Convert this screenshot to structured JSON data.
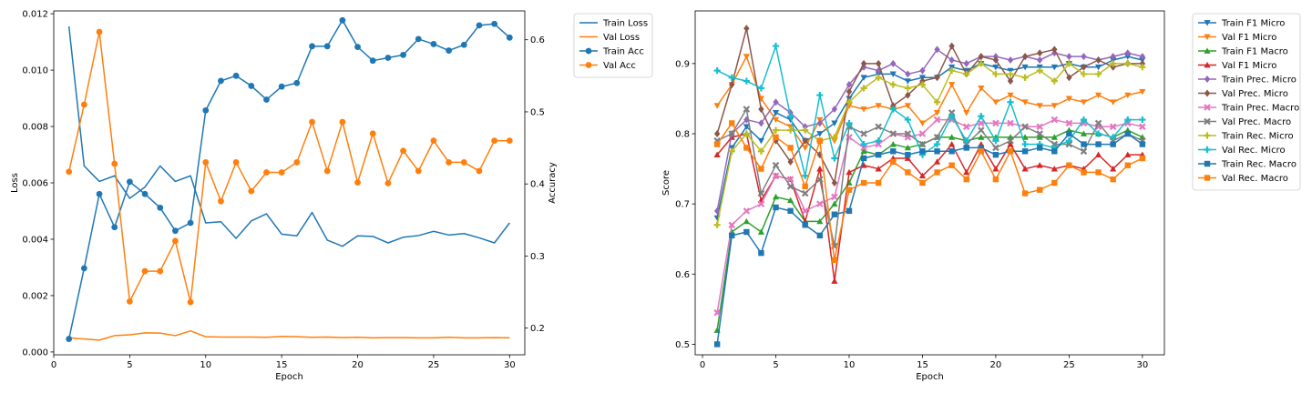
{
  "colors": {
    "c0": "#1f77b4",
    "c1": "#ff7f0e",
    "c2": "#2ca02c",
    "c3": "#d62728",
    "c4": "#9467bd",
    "c5": "#8c564b",
    "c6": "#e377c2",
    "c7": "#7f7f7f",
    "c8": "#bcbd22",
    "c9": "#17becf"
  },
  "chart_data": [
    {
      "type": "line",
      "xlabel": "Epoch",
      "ylabel": "Loss",
      "y2label": "Accuracy",
      "xlim": [
        0,
        31
      ],
      "ylim": [
        -0.0001,
        0.0121
      ],
      "y2lim": [
        0.163,
        0.64
      ],
      "xticks": [
        0,
        5,
        10,
        15,
        20,
        25,
        30
      ],
      "yticks": [
        0.0,
        0.002,
        0.004,
        0.006,
        0.008,
        0.01,
        0.012
      ],
      "ytick_labels": [
        "0.000",
        "0.002",
        "0.004",
        "0.006",
        "0.008",
        "0.010",
        "0.012"
      ],
      "y2ticks": [
        0.2,
        0.3,
        0.4,
        0.5,
        0.6
      ],
      "y2tick_labels": [
        "0.2",
        "0.3",
        "0.4",
        "0.5",
        "0.6"
      ],
      "legend_position": "outside-right",
      "x": [
        1,
        2,
        3,
        4,
        5,
        6,
        7,
        8,
        9,
        10,
        11,
        12,
        13,
        14,
        15,
        16,
        17,
        18,
        19,
        20,
        21,
        22,
        23,
        24,
        25,
        26,
        27,
        28,
        29,
        30
      ],
      "series": [
        {
          "name": "Train Loss",
          "axis": "left",
          "color": "c0",
          "marker": "none",
          "values": [
            0.01155,
            0.0066,
            0.00605,
            0.00625,
            0.00545,
            0.00585,
            0.0066,
            0.00605,
            0.00625,
            0.00458,
            0.00462,
            0.00403,
            0.00465,
            0.0049,
            0.00418,
            0.00412,
            0.00495,
            0.00397,
            0.00375,
            0.00412,
            0.0041,
            0.00387,
            0.00407,
            0.00413,
            0.00428,
            0.00415,
            0.0042,
            0.00405,
            0.00387,
            0.00458
          ]
        },
        {
          "name": "Val Loss",
          "axis": "left",
          "color": "c1",
          "marker": "none",
          "values": [
            0.0005,
            0.00046,
            0.00042,
            0.00058,
            0.00061,
            0.00068,
            0.00067,
            0.00058,
            0.00075,
            0.00054,
            0.00053,
            0.00053,
            0.00053,
            0.00052,
            0.00055,
            0.00054,
            0.00052,
            0.00053,
            0.00051,
            0.00052,
            0.0005,
            0.00051,
            0.00051,
            0.0005,
            0.0005,
            0.00052,
            0.0005,
            0.0005,
            0.00051,
            0.0005
          ]
        },
        {
          "name": "Train Acc",
          "axis": "right",
          "color": "c0",
          "marker": "circle",
          "values": [
            0.185,
            0.283,
            0.386,
            0.34,
            0.403,
            0.386,
            0.367,
            0.335,
            0.346,
            0.502,
            0.543,
            0.55,
            0.536,
            0.517,
            0.535,
            0.54,
            0.591,
            0.591,
            0.627,
            0.59,
            0.571,
            0.575,
            0.579,
            0.601,
            0.594,
            0.585,
            0.593,
            0.62,
            0.622,
            0.603
          ]
        },
        {
          "name": "Val Acc",
          "axis": "right",
          "color": "c1",
          "marker": "circle",
          "values": [
            0.417,
            0.51,
            0.611,
            0.428,
            0.237,
            0.279,
            0.279,
            0.321,
            0.236,
            0.43,
            0.376,
            0.43,
            0.39,
            0.416,
            0.416,
            0.43,
            0.486,
            0.418,
            0.486,
            0.402,
            0.47,
            0.401,
            0.446,
            0.418,
            0.46,
            0.43,
            0.43,
            0.418,
            0.46,
            0.46
          ]
        }
      ]
    },
    {
      "type": "line",
      "xlabel": "Epoch",
      "ylabel": "Score",
      "xlim": [
        -0.5,
        31.5
      ],
      "ylim": [
        0.485,
        0.975
      ],
      "xticks": [
        0,
        5,
        10,
        15,
        20,
        25,
        30
      ],
      "yticks": [
        0.5,
        0.6,
        0.7,
        0.8,
        0.9
      ],
      "ytick_labels": [
        "0.5",
        "0.6",
        "0.7",
        "0.8",
        "0.9"
      ],
      "legend_position": "outside-right",
      "x": [
        1,
        2,
        3,
        4,
        5,
        6,
        7,
        8,
        9,
        10,
        11,
        12,
        13,
        14,
        15,
        16,
        17,
        18,
        19,
        20,
        21,
        22,
        23,
        24,
        25,
        26,
        27,
        28,
        29,
        30
      ],
      "series": [
        {
          "name": "Train F1 Micro",
          "color": "c0",
          "marker": "tri_down",
          "values": [
            0.68,
            0.78,
            0.81,
            0.79,
            0.83,
            0.82,
            0.79,
            0.8,
            0.815,
            0.85,
            0.88,
            0.885,
            0.885,
            0.875,
            0.88,
            0.88,
            0.895,
            0.89,
            0.9,
            0.895,
            0.89,
            0.895,
            0.895,
            0.895,
            0.9,
            0.895,
            0.895,
            0.905,
            0.91,
            0.905
          ]
        },
        {
          "name": "Val F1 Micro",
          "color": "c1",
          "marker": "tri_down",
          "values": [
            0.84,
            0.87,
            0.91,
            0.85,
            0.82,
            0.81,
            0.78,
            0.82,
            0.79,
            0.84,
            0.835,
            0.84,
            0.835,
            0.84,
            0.815,
            0.83,
            0.87,
            0.83,
            0.865,
            0.845,
            0.855,
            0.845,
            0.84,
            0.84,
            0.85,
            0.845,
            0.855,
            0.845,
            0.855,
            0.86
          ]
        },
        {
          "name": "Train F1 Macro",
          "color": "c2",
          "marker": "tri_up",
          "values": [
            0.52,
            0.66,
            0.675,
            0.66,
            0.71,
            0.705,
            0.675,
            0.675,
            0.7,
            0.73,
            0.775,
            0.77,
            0.785,
            0.78,
            0.785,
            0.795,
            0.795,
            0.79,
            0.795,
            0.795,
            0.795,
            0.795,
            0.795,
            0.795,
            0.805,
            0.8,
            0.8,
            0.795,
            0.805,
            0.795
          ]
        },
        {
          "name": "Val F1 Micro",
          "color": "c3",
          "marker": "tri_up",
          "values": [
            0.77,
            0.795,
            0.8,
            0.705,
            0.74,
            0.735,
            0.675,
            0.75,
            0.59,
            0.745,
            0.755,
            0.75,
            0.765,
            0.765,
            0.74,
            0.76,
            0.785,
            0.745,
            0.785,
            0.75,
            0.785,
            0.75,
            0.755,
            0.75,
            0.755,
            0.75,
            0.77,
            0.75,
            0.77,
            0.77
          ]
        },
        {
          "name": "Train Prec. Micro",
          "color": "c4",
          "marker": "diamond",
          "values": [
            0.69,
            0.8,
            0.82,
            0.815,
            0.845,
            0.83,
            0.81,
            0.815,
            0.835,
            0.87,
            0.895,
            0.89,
            0.9,
            0.885,
            0.89,
            0.92,
            0.905,
            0.9,
            0.91,
            0.91,
            0.905,
            0.91,
            0.905,
            0.915,
            0.91,
            0.91,
            0.905,
            0.91,
            0.915,
            0.91
          ]
        },
        {
          "name": "Val Prec. Micro",
          "color": "c5",
          "marker": "diamond",
          "values": [
            0.8,
            0.87,
            0.95,
            0.835,
            0.79,
            0.76,
            0.79,
            0.77,
            0.73,
            0.86,
            0.9,
            0.9,
            0.84,
            0.855,
            0.875,
            0.88,
            0.925,
            0.885,
            0.91,
            0.905,
            0.875,
            0.91,
            0.915,
            0.92,
            0.88,
            0.895,
            0.905,
            0.895,
            0.9,
            0.9
          ]
        },
        {
          "name": "Train Prec. Macro",
          "color": "c6",
          "marker": "x",
          "values": [
            0.545,
            0.67,
            0.69,
            0.7,
            0.74,
            0.735,
            0.69,
            0.7,
            0.71,
            0.795,
            0.78,
            0.785,
            0.8,
            0.795,
            0.8,
            0.82,
            0.82,
            0.81,
            0.815,
            0.815,
            0.815,
            0.81,
            0.81,
            0.82,
            0.815,
            0.815,
            0.81,
            0.81,
            0.815,
            0.81
          ]
        },
        {
          "name": "Val Prec. Macro",
          "color": "c7",
          "marker": "x",
          "values": [
            0.79,
            0.8,
            0.835,
            0.715,
            0.755,
            0.725,
            0.715,
            0.735,
            0.64,
            0.81,
            0.8,
            0.81,
            0.8,
            0.8,
            0.785,
            0.795,
            0.83,
            0.785,
            0.805,
            0.78,
            0.79,
            0.81,
            0.8,
            0.785,
            0.785,
            0.775,
            0.815,
            0.79,
            0.8,
            0.79
          ]
        },
        {
          "name": "Train Rec. Micro",
          "color": "c8",
          "marker": "plus",
          "values": [
            0.67,
            0.775,
            0.8,
            0.775,
            0.805,
            0.805,
            0.805,
            0.79,
            0.795,
            0.845,
            0.865,
            0.88,
            0.87,
            0.865,
            0.87,
            0.845,
            0.89,
            0.885,
            0.9,
            0.885,
            0.885,
            0.88,
            0.89,
            0.875,
            0.9,
            0.885,
            0.885,
            0.9,
            0.9,
            0.895
          ]
        },
        {
          "name": "Val Rec. Micro",
          "color": "c9",
          "marker": "plus",
          "values": [
            0.89,
            0.88,
            0.875,
            0.865,
            0.925,
            0.825,
            0.74,
            0.855,
            0.765,
            0.815,
            0.785,
            0.79,
            0.835,
            0.82,
            0.77,
            0.785,
            0.825,
            0.79,
            0.825,
            0.79,
            0.845,
            0.785,
            0.785,
            0.78,
            0.79,
            0.82,
            0.8,
            0.795,
            0.82,
            0.82
          ]
        },
        {
          "name": "Train Rec. Macro",
          "color": "c0",
          "marker": "square",
          "values": [
            0.5,
            0.655,
            0.66,
            0.63,
            0.695,
            0.69,
            0.67,
            0.655,
            0.685,
            0.69,
            0.765,
            0.77,
            0.775,
            0.77,
            0.775,
            0.775,
            0.775,
            0.78,
            0.78,
            0.77,
            0.775,
            0.775,
            0.78,
            0.775,
            0.8,
            0.785,
            0.785,
            0.785,
            0.8,
            0.785
          ]
        },
        {
          "name": "Val Rec. Macro",
          "color": "c1",
          "marker": "square",
          "values": [
            0.785,
            0.815,
            0.78,
            0.75,
            0.795,
            0.78,
            0.725,
            0.79,
            0.62,
            0.72,
            0.73,
            0.73,
            0.76,
            0.745,
            0.73,
            0.745,
            0.755,
            0.735,
            0.775,
            0.735,
            0.775,
            0.715,
            0.72,
            0.73,
            0.755,
            0.745,
            0.745,
            0.735,
            0.755,
            0.765
          ]
        }
      ]
    }
  ]
}
